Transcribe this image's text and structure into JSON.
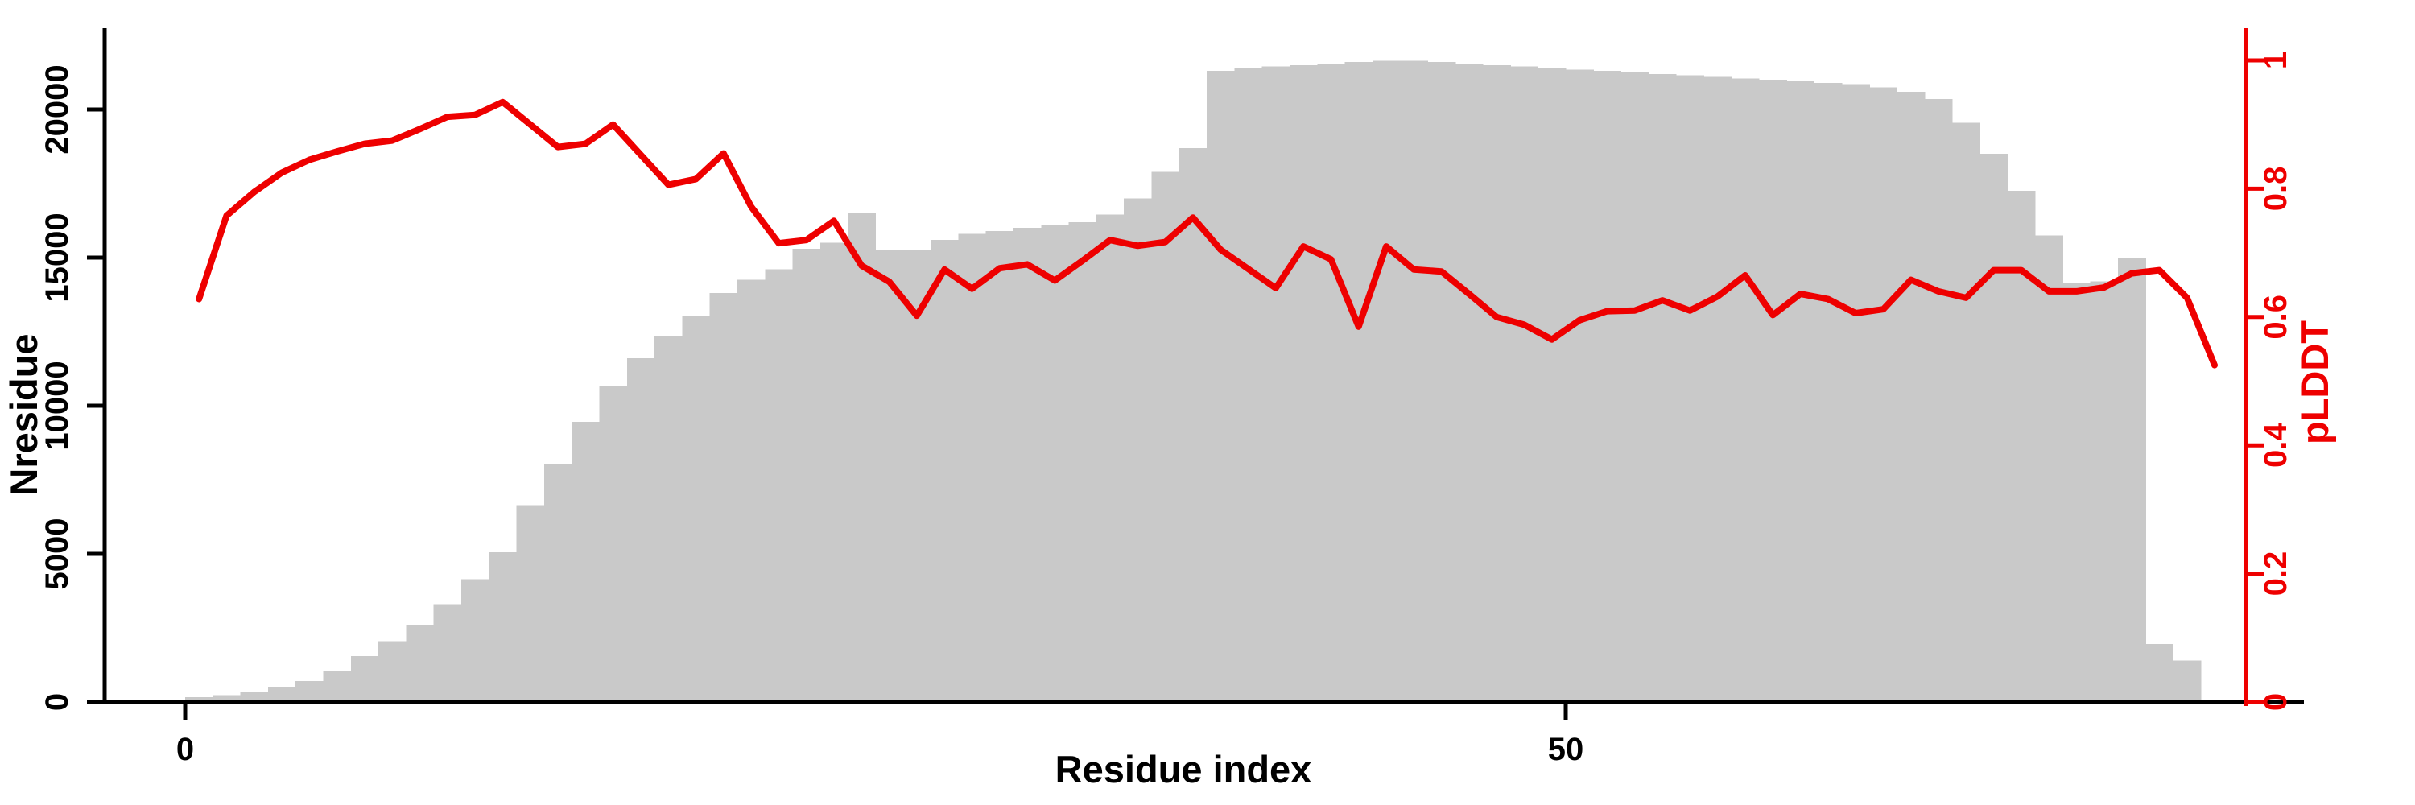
{
  "chart_data": {
    "type": "bar",
    "subtype": "bar-histogram-with-line-overlay",
    "title": "",
    "xlabel": "Residue index",
    "ylabel_left": "Nresidue",
    "ylabel_right": "pLDDT",
    "x": [
      1,
      2,
      3,
      4,
      5,
      6,
      7,
      8,
      9,
      10,
      11,
      12,
      13,
      14,
      15,
      16,
      17,
      18,
      19,
      20,
      21,
      22,
      23,
      24,
      25,
      26,
      27,
      28,
      29,
      30,
      31,
      32,
      33,
      34,
      35,
      36,
      37,
      38,
      39,
      40,
      41,
      42,
      43,
      44,
      45,
      46,
      47,
      48,
      49,
      50,
      51,
      52,
      53,
      54,
      55,
      56,
      57,
      58,
      59,
      60,
      61,
      62,
      63,
      64,
      65,
      66,
      67,
      68,
      69,
      70,
      71,
      72,
      73,
      74
    ],
    "series": [
      {
        "name": "Nresidue",
        "type": "bar",
        "axis": "left",
        "color": "#c9c9c9",
        "values": [
          160,
          230,
          330,
          500,
          700,
          1060,
          1550,
          2050,
          2600,
          3300,
          4150,
          5050,
          6650,
          8050,
          9450,
          10650,
          11600,
          12350,
          13050,
          13800,
          14250,
          14600,
          15300,
          15500,
          16500,
          15250,
          15250,
          15600,
          15800,
          15900,
          16000,
          16100,
          16200,
          16450,
          17000,
          17900,
          18700,
          21300,
          21400,
          21450,
          21500,
          21550,
          21600,
          21650,
          21650,
          21600,
          21550,
          21500,
          21450,
          21400,
          21350,
          21300,
          21250,
          21200,
          21150,
          21100,
          21050,
          21000,
          20950,
          20900,
          20850,
          20750,
          20600,
          20350,
          19550,
          18500,
          17250,
          15750,
          14150,
          14200,
          15000,
          1950,
          1400,
          0
        ]
      },
      {
        "name": "pLDDT",
        "type": "line",
        "axis": "right",
        "color": "#ee0000",
        "values": [
          0.628,
          0.758,
          0.795,
          0.825,
          0.845,
          0.858,
          0.87,
          0.875,
          0.893,
          0.912,
          0.915,
          0.935,
          0.9,
          0.865,
          0.87,
          0.9,
          0.853,
          0.806,
          0.815,
          0.855,
          0.772,
          0.715,
          0.72,
          0.75,
          0.68,
          0.655,
          0.602,
          0.674,
          0.644,
          0.676,
          0.682,
          0.657,
          0.688,
          0.72,
          0.711,
          0.717,
          0.755,
          0.705,
          0.675,
          0.645,
          0.71,
          0.69,
          0.585,
          0.71,
          0.674,
          0.671,
          0.636,
          0.6,
          0.588,
          0.565,
          0.595,
          0.609,
          0.61,
          0.626,
          0.61,
          0.632,
          0.665,
          0.603,
          0.636,
          0.628,
          0.606,
          0.612,
          0.658,
          0.64,
          0.63,
          0.673,
          0.673,
          0.64,
          0.64,
          0.646,
          0.668,
          0.673,
          0.63,
          0.525
        ]
      }
    ],
    "axes": {
      "x": {
        "tick_values": [
          0,
          50
        ],
        "tick_labels": [
          "0",
          "50"
        ],
        "range": [
          -2.9,
          76.7
        ]
      },
      "left": {
        "tick_values": [
          0,
          5000,
          10000,
          15000,
          20000
        ],
        "tick_labels": [
          "0",
          "5000",
          "10000",
          "15000",
          "20000"
        ],
        "range": [
          0,
          22750
        ],
        "color": "#000000"
      },
      "right": {
        "tick_values": [
          0,
          0.2,
          0.4,
          0.6,
          0.8,
          1
        ],
        "tick_labels": [
          "0",
          "0.2",
          "0.4",
          "0.6",
          "0.8",
          "1"
        ],
        "range": [
          0,
          1.05
        ],
        "color": "#ee0000"
      }
    },
    "grid": false,
    "legend": "none",
    "background": "#ffffff"
  },
  "labels": {
    "x_axis_title": "Residue index",
    "left_axis_title": "Nresidue",
    "right_axis_title": "pLDDT"
  },
  "colors": {
    "bar_fill": "#c9c9c9",
    "line_stroke": "#ee0000",
    "left_axis": "#000000",
    "right_axis": "#ee0000",
    "background": "#ffffff"
  }
}
